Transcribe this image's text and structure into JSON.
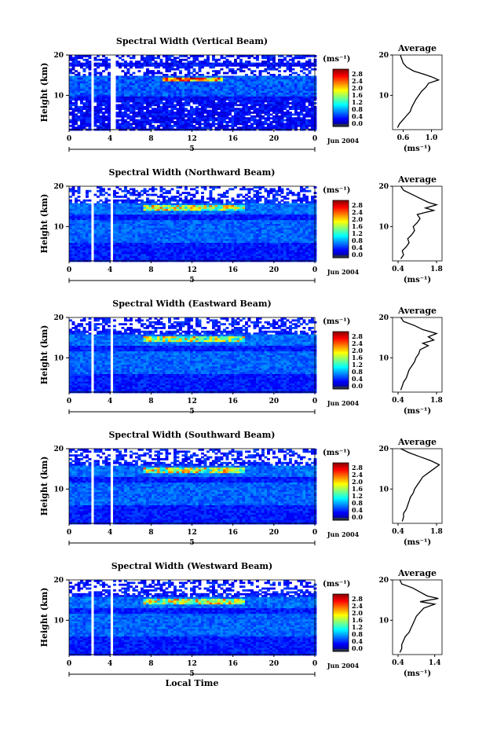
{
  "chart_data": [
    {
      "type": "heatmap",
      "title": "Spectral Width (Vertical Beam)",
      "ylabel": "Height (km)",
      "y_ticks": [
        "20",
        "10"
      ],
      "x_ticks": [
        "0",
        "4",
        "8",
        "12",
        "16",
        "20",
        "0"
      ],
      "ylim_km": [
        1.5,
        20
      ],
      "xlim_hours": [
        0,
        24
      ],
      "date_label": "Jun 2004",
      "day_label": "5",
      "colorbar": {
        "unit": "(ms⁻¹)",
        "ticks": [
          "2.8",
          "2.4",
          "2.0",
          "1.6",
          "1.2",
          "0.8",
          "0.4",
          "0.0"
        ]
      },
      "data_gaps_hours": [
        [
          1.9,
          2.4
        ],
        [
          3.8,
          4.3
        ]
      ],
      "profile": {
        "title": "Average",
        "xlabel": "(ms⁻¹)",
        "x_ticks": [
          "0.6",
          "1.0"
        ],
        "xlim": [
          0.45,
          1.15
        ],
        "y_ticks": [
          "20",
          "10"
        ],
        "points": [
          [
            0.52,
            2
          ],
          [
            0.55,
            3
          ],
          [
            0.6,
            4
          ],
          [
            0.65,
            5
          ],
          [
            0.7,
            6
          ],
          [
            0.72,
            7
          ],
          [
            0.75,
            8
          ],
          [
            0.78,
            9
          ],
          [
            0.82,
            10
          ],
          [
            0.86,
            11
          ],
          [
            0.92,
            12
          ],
          [
            0.96,
            13
          ],
          [
            1.1,
            13.8
          ],
          [
            1.0,
            14.6
          ],
          [
            0.9,
            15.2
          ],
          [
            0.75,
            16
          ],
          [
            0.65,
            17
          ],
          [
            0.6,
            18
          ],
          [
            0.58,
            19
          ],
          [
            0.56,
            20
          ]
        ]
      }
    },
    {
      "type": "heatmap",
      "title": "Spectral Width (Northward Beam)",
      "ylabel": "Height (km)",
      "y_ticks": [
        "20",
        "10"
      ],
      "x_ticks": [
        "0",
        "4",
        "8",
        "12",
        "16",
        "20",
        "0"
      ],
      "ylim_km": [
        1.5,
        20
      ],
      "xlim_hours": [
        0,
        24
      ],
      "date_label": "Jun 2004",
      "day_label": "5",
      "colorbar": {
        "unit": "(ms⁻¹)",
        "ticks": [
          "2.8",
          "2.4",
          "2.0",
          "1.6",
          "1.2",
          "0.8",
          "0.4",
          "0.0"
        ]
      },
      "data_gaps_hours": [
        [
          1.9,
          2.3
        ],
        [
          3.8,
          4.2
        ]
      ],
      "profile": {
        "title": "Average",
        "xlabel": "(ms⁻¹)",
        "x_ticks": [
          "0.4",
          "1.8"
        ],
        "xlim": [
          0.2,
          2.0
        ],
        "y_ticks": [
          "20",
          "10"
        ],
        "points": [
          [
            0.5,
            2
          ],
          [
            0.6,
            3
          ],
          [
            0.55,
            4
          ],
          [
            0.7,
            5
          ],
          [
            0.8,
            6
          ],
          [
            0.75,
            7
          ],
          [
            0.9,
            8
          ],
          [
            1.0,
            9
          ],
          [
            0.95,
            10
          ],
          [
            1.1,
            11
          ],
          [
            1.2,
            12
          ],
          [
            1.1,
            13
          ],
          [
            1.7,
            14
          ],
          [
            1.4,
            14.6
          ],
          [
            1.8,
            15.4
          ],
          [
            1.5,
            16
          ],
          [
            1.2,
            17
          ],
          [
            0.9,
            18
          ],
          [
            0.6,
            19
          ],
          [
            0.5,
            20
          ]
        ]
      }
    },
    {
      "type": "heatmap",
      "title": "Spectral Width (Eastward Beam)",
      "ylabel": "Height (km)",
      "y_ticks": [
        "20",
        "10"
      ],
      "x_ticks": [
        "0",
        "4",
        "8",
        "12",
        "16",
        "20",
        "0"
      ],
      "ylim_km": [
        1.5,
        20
      ],
      "xlim_hours": [
        0,
        24
      ],
      "date_label": "Jun 2004",
      "day_label": "5",
      "colorbar": {
        "unit": "(ms⁻¹)",
        "ticks": [
          "2.8",
          "2.4",
          "2.0",
          "1.6",
          "1.2",
          "0.8",
          "0.4",
          "0.0"
        ]
      },
      "data_gaps_hours": [
        [
          1.9,
          2.3
        ],
        [
          3.8,
          4.2
        ]
      ],
      "profile": {
        "title": "Average",
        "xlabel": "(ms⁻¹)",
        "x_ticks": [
          "0.4",
          "1.8"
        ],
        "xlim": [
          0.2,
          2.0
        ],
        "y_ticks": [
          "20",
          "10"
        ],
        "points": [
          [
            0.5,
            2
          ],
          [
            0.55,
            3
          ],
          [
            0.6,
            4
          ],
          [
            0.7,
            5
          ],
          [
            0.75,
            6
          ],
          [
            0.8,
            7
          ],
          [
            0.9,
            8
          ],
          [
            1.0,
            9
          ],
          [
            1.05,
            10
          ],
          [
            1.15,
            11
          ],
          [
            1.2,
            12
          ],
          [
            1.5,
            13
          ],
          [
            1.3,
            13.6
          ],
          [
            1.7,
            14.4
          ],
          [
            1.5,
            15.2
          ],
          [
            1.8,
            16
          ],
          [
            1.3,
            17
          ],
          [
            1.0,
            18
          ],
          [
            0.6,
            19
          ],
          [
            0.5,
            20
          ]
        ]
      }
    },
    {
      "type": "heatmap",
      "title": "Spectral Width (Southward Beam)",
      "ylabel": "Height (km)",
      "y_ticks": [
        "20",
        "10"
      ],
      "x_ticks": [
        "0",
        "4",
        "8",
        "12",
        "16",
        "20",
        "0"
      ],
      "ylim_km": [
        1.5,
        20
      ],
      "xlim_hours": [
        0,
        24
      ],
      "date_label": "Jun 2004",
      "day_label": "5",
      "colorbar": {
        "unit": "(ms⁻¹)",
        "ticks": [
          "2.8",
          "2.4",
          "2.0",
          "1.6",
          "1.2",
          "0.8",
          "0.4",
          "0.0"
        ]
      },
      "data_gaps_hours": [
        [
          1.9,
          2.3
        ],
        [
          3.8,
          4.2
        ]
      ],
      "profile": {
        "title": "Average",
        "xlabel": "(ms⁻¹)",
        "x_ticks": [
          "0.4",
          "1.8"
        ],
        "xlim": [
          0.2,
          2.0
        ],
        "y_ticks": [
          "20",
          "10"
        ],
        "points": [
          [
            0.55,
            2
          ],
          [
            0.6,
            3
          ],
          [
            0.6,
            4
          ],
          [
            0.7,
            5
          ],
          [
            0.75,
            6
          ],
          [
            0.8,
            7
          ],
          [
            0.85,
            8
          ],
          [
            0.95,
            9
          ],
          [
            1.0,
            10
          ],
          [
            1.1,
            11
          ],
          [
            1.2,
            12
          ],
          [
            1.3,
            13
          ],
          [
            1.5,
            14
          ],
          [
            1.7,
            15
          ],
          [
            1.9,
            16
          ],
          [
            1.6,
            17
          ],
          [
            1.2,
            18
          ],
          [
            0.8,
            19
          ],
          [
            0.5,
            20
          ]
        ]
      }
    },
    {
      "type": "heatmap",
      "title": "Spectral Width (Westward Beam)",
      "ylabel": "Height (km)",
      "y_ticks": [
        "20",
        "10"
      ],
      "x_ticks": [
        "0",
        "4",
        "8",
        "12",
        "16",
        "20",
        "0"
      ],
      "xlabel": "Local Time",
      "ylim_km": [
        1.5,
        20
      ],
      "xlim_hours": [
        0,
        24
      ],
      "date_label": "Jun 2004",
      "day_label": "5",
      "colorbar": {
        "unit": "(ms⁻¹)",
        "ticks": [
          "2.8",
          "2.4",
          "2.0",
          "1.6",
          "1.2",
          "0.8",
          "0.4",
          "0.0"
        ]
      },
      "data_gaps_hours": [
        [
          1.9,
          2.3
        ],
        [
          3.8,
          4.2
        ]
      ],
      "profile": {
        "title": "Average",
        "xlabel": "(ms⁻¹)",
        "x_ticks": [
          "0.4",
          "1.4"
        ],
        "xlim": [
          0.25,
          1.6
        ],
        "y_ticks": [
          "20",
          "10"
        ],
        "points": [
          [
            0.45,
            2
          ],
          [
            0.5,
            3
          ],
          [
            0.5,
            4
          ],
          [
            0.55,
            5
          ],
          [
            0.6,
            6
          ],
          [
            0.7,
            7
          ],
          [
            0.75,
            8
          ],
          [
            0.8,
            9
          ],
          [
            0.85,
            10
          ],
          [
            0.9,
            11
          ],
          [
            1.0,
            12
          ],
          [
            1.1,
            13
          ],
          [
            1.4,
            14
          ],
          [
            1.0,
            14.6
          ],
          [
            1.5,
            15.4
          ],
          [
            1.2,
            16
          ],
          [
            1.0,
            17
          ],
          [
            0.8,
            18
          ],
          [
            0.5,
            19
          ],
          [
            0.45,
            20
          ]
        ]
      }
    }
  ]
}
